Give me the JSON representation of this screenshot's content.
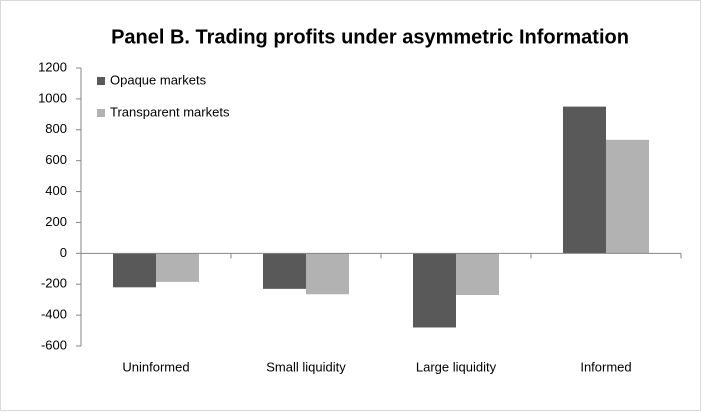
{
  "chart_data": {
    "type": "bar",
    "title": "Panel B. Trading profits under asymmetric Information",
    "categories": [
      "Uninformed",
      "Small liquidity",
      "Large liquidity",
      "Informed"
    ],
    "series": [
      {
        "name": "Opaque markets",
        "color": "#595959",
        "values": [
          -220,
          -230,
          -480,
          950
        ]
      },
      {
        "name": "Transparent markets",
        "color": "#b2b2b2",
        "values": [
          -185,
          -265,
          -270,
          735
        ]
      }
    ],
    "ylim": [
      -600,
      1200
    ],
    "yticks": [
      -600,
      -400,
      -200,
      0,
      200,
      400,
      600,
      800,
      1000,
      1200
    ],
    "legend": "upper left",
    "grid": false
  }
}
